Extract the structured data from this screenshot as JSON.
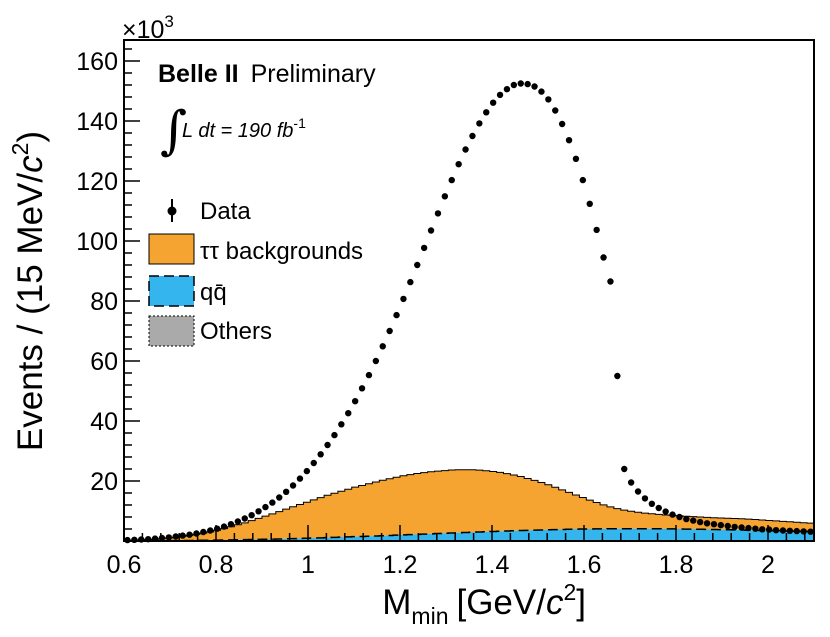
{
  "chart_data": {
    "type": "histogram",
    "experiment": "Belle II",
    "status": "Preliminary",
    "luminosity": {
      "integral": "∫",
      "text": "L dt = 190 fb",
      "exp": "-1"
    },
    "axis_multiplier": {
      "base": "×10",
      "exp": "3"
    },
    "xlabel": {
      "main": "M",
      "sub": "min",
      "unit": "[GeV/",
      "c": "c",
      "exp": "2",
      "close": "]"
    },
    "ylabel": {
      "main": "Events / (15 MeV/",
      "c": "c",
      "exp": "2",
      "close": ")"
    },
    "xlim": [
      0.6,
      2.1
    ],
    "ylim": [
      0,
      167
    ],
    "xticks": [
      0.6,
      0.8,
      1.0,
      1.2,
      1.4,
      1.6,
      1.8,
      2.0
    ],
    "xtick_labels": [
      "0.6",
      "0.8",
      "1",
      "1.2",
      "1.4",
      "1.6",
      "1.8",
      "2"
    ],
    "yticks": [
      20,
      40,
      60,
      80,
      100,
      120,
      140,
      160
    ],
    "ytick_labels": [
      "20",
      "40",
      "60",
      "80",
      "100",
      "120",
      "140",
      "160"
    ],
    "bin_width": 0.015,
    "legend": {
      "data": "Data",
      "tautau": "ττ backgrounds",
      "qqbar": "qq̄",
      "others": "Others"
    },
    "colors": {
      "tautau": "#f5a431",
      "qqbar": "#35b5ee",
      "others": "#aaaaaa"
    },
    "series": [
      {
        "name": "Data",
        "x": [
          0.6075,
          0.6225,
          0.6375,
          0.6525,
          0.6675,
          0.6825,
          0.6975,
          0.7125,
          0.7275,
          0.7425,
          0.7575,
          0.7725,
          0.7875,
          0.8025,
          0.8175,
          0.8325,
          0.8475,
          0.8625,
          0.8775,
          0.8925,
          0.9075,
          0.9225,
          0.9375,
          0.9525,
          0.9675,
          0.9825,
          0.9975,
          1.0125,
          1.0275,
          1.0425,
          1.0575,
          1.0725,
          1.0875,
          1.1025,
          1.1175,
          1.1325,
          1.1475,
          1.1625,
          1.1775,
          1.1925,
          1.2075,
          1.2225,
          1.2375,
          1.2525,
          1.2675,
          1.2825,
          1.2975,
          1.3125,
          1.3275,
          1.3425,
          1.3575,
          1.3725,
          1.3875,
          1.4025,
          1.4175,
          1.4325,
          1.4475,
          1.4625,
          1.4775,
          1.4925,
          1.5075,
          1.5225,
          1.5375,
          1.5525,
          1.5675,
          1.5825,
          1.5975,
          1.6125,
          1.6275,
          1.6425,
          1.6575,
          1.6725,
          1.6875,
          1.7025,
          1.7175,
          1.7325,
          1.7475,
          1.7625,
          1.7775,
          1.7925,
          1.8075,
          1.8225,
          1.8375,
          1.8525,
          1.8675,
          1.8825,
          1.8975,
          1.9125,
          1.9275,
          1.9425,
          1.9575,
          1.9725,
          1.9875,
          2.0025,
          2.0175,
          2.0325,
          2.0475,
          2.0625,
          2.0775,
          2.0925
        ],
        "values": [
          0.3,
          0.4,
          0.5,
          0.6,
          0.8,
          1.0,
          1.2,
          1.5,
          1.8,
          2.1,
          2.5,
          3.0,
          3.5,
          4.1,
          4.8,
          5.6,
          6.5,
          7.5,
          8.6,
          9.9,
          11.3,
          12.8,
          14.5,
          16.4,
          18.5,
          20.8,
          23.3,
          26.0,
          28.9,
          32.0,
          35.3,
          38.9,
          42.6,
          46.6,
          50.9,
          55.3,
          60.0,
          64.9,
          70.0,
          75.3,
          80.7,
          86.3,
          92.0,
          97.7,
          103.5,
          109.2,
          114.9,
          120.3,
          125.6,
          130.5,
          135.0,
          139.2,
          142.9,
          146.1,
          148.7,
          150.6,
          152.0,
          152.5,
          152.3,
          151.5,
          149.8,
          147.2,
          143.5,
          139.0,
          133.6,
          127.4,
          120.3,
          112.4,
          103.7,
          94.5,
          86.5,
          55.0,
          24.0,
          19.5,
          16.5,
          14.2,
          12.4,
          11.0,
          9.8,
          8.8,
          8.0,
          7.3,
          6.8,
          6.3,
          5.9,
          5.6,
          5.3,
          5.0,
          4.7,
          4.5,
          4.3,
          4.1,
          3.9,
          3.8,
          3.6,
          3.5,
          3.4,
          3.3,
          3.2,
          3.1
        ]
      },
      {
        "name": "ττ backgrounds",
        "x": [
          0.6075,
          0.6225,
          0.6375,
          0.6525,
          0.6675,
          0.6825,
          0.6975,
          0.7125,
          0.7275,
          0.7425,
          0.7575,
          0.7725,
          0.7875,
          0.8025,
          0.8175,
          0.8325,
          0.8475,
          0.8625,
          0.8775,
          0.8925,
          0.9075,
          0.9225,
          0.9375,
          0.9525,
          0.9675,
          0.9825,
          0.9975,
          1.0125,
          1.0275,
          1.0425,
          1.0575,
          1.0725,
          1.0875,
          1.1025,
          1.1175,
          1.1325,
          1.1475,
          1.1625,
          1.1775,
          1.1925,
          1.2075,
          1.2225,
          1.2375,
          1.2525,
          1.2675,
          1.2825,
          1.2975,
          1.3125,
          1.3275,
          1.3425,
          1.3575,
          1.3725,
          1.3875,
          1.4025,
          1.4175,
          1.4325,
          1.4475,
          1.4625,
          1.4775,
          1.4925,
          1.5075,
          1.5225,
          1.5375,
          1.5525,
          1.5675,
          1.5825,
          1.5975,
          1.6125,
          1.6275,
          1.6425,
          1.6575,
          1.6725,
          1.6875,
          1.7025,
          1.7175,
          1.7325,
          1.7475,
          1.7625,
          1.7775,
          1.7925,
          1.8075,
          1.8225,
          1.8375,
          1.8525,
          1.8675,
          1.8825,
          1.8975,
          1.9125,
          1.9275,
          1.9425,
          1.9575,
          1.9725,
          1.9875,
          2.0025,
          2.0175,
          2.0325,
          2.0475,
          2.0625,
          2.0775,
          2.0925
        ],
        "values": [
          0.1,
          0.2,
          0.3,
          0.4,
          0.5,
          0.7,
          0.9,
          1.1,
          1.4,
          1.7,
          2.0,
          2.4,
          2.8,
          3.3,
          3.8,
          4.4,
          5.0,
          5.6,
          6.3,
          7.0,
          7.7,
          8.4,
          9.1,
          9.9,
          10.6,
          11.3,
          12.0,
          12.7,
          13.4,
          14.1,
          14.7,
          15.3,
          15.9,
          16.5,
          17.0,
          17.5,
          18.0,
          18.5,
          18.9,
          19.3,
          19.7,
          20.0,
          20.3,
          20.5,
          20.7,
          20.8,
          20.9,
          21.0,
          21.0,
          20.9,
          20.8,
          20.6,
          20.3,
          20.0,
          19.6,
          19.1,
          18.6,
          18.0,
          17.3,
          16.6,
          15.8,
          15.0,
          14.1,
          13.2,
          12.3,
          11.4,
          10.5,
          9.6,
          8.8,
          8.0,
          7.3,
          6.7,
          6.2,
          5.8,
          5.5,
          5.2,
          5.0,
          4.8,
          4.6,
          4.5,
          4.4,
          4.3,
          4.2,
          4.1,
          4.0,
          3.95,
          3.9,
          3.85,
          3.8,
          3.75,
          3.7,
          3.6,
          3.5,
          3.4,
          3.3,
          3.2,
          3.1,
          3.0,
          2.9,
          2.8
        ]
      },
      {
        "name": "qq̄",
        "x": [
          0.6075,
          0.6225,
          0.6375,
          0.6525,
          0.6675,
          0.6825,
          0.6975,
          0.7125,
          0.7275,
          0.7425,
          0.7575,
          0.7725,
          0.7875,
          0.8025,
          0.8175,
          0.8325,
          0.8475,
          0.8625,
          0.8775,
          0.8925,
          0.9075,
          0.9225,
          0.9375,
          0.9525,
          0.9675,
          0.9825,
          0.9975,
          1.0125,
          1.0275,
          1.0425,
          1.0575,
          1.0725,
          1.0875,
          1.1025,
          1.1175,
          1.1325,
          1.1475,
          1.1625,
          1.1775,
          1.1925,
          1.2075,
          1.2225,
          1.2375,
          1.2525,
          1.2675,
          1.2825,
          1.2975,
          1.3125,
          1.3275,
          1.3425,
          1.3575,
          1.3725,
          1.3875,
          1.4025,
          1.4175,
          1.4325,
          1.4475,
          1.4625,
          1.4775,
          1.4925,
          1.5075,
          1.5225,
          1.5375,
          1.5525,
          1.5675,
          1.5825,
          1.5975,
          1.6125,
          1.6275,
          1.6425,
          1.6575,
          1.6725,
          1.6875,
          1.7025,
          1.7175,
          1.7325,
          1.7475,
          1.7625,
          1.7775,
          1.7925,
          1.8075,
          1.8225,
          1.8375,
          1.8525,
          1.8675,
          1.8825,
          1.8975,
          1.9125,
          1.9275,
          1.9425,
          1.9575,
          1.9725,
          1.9875,
          2.0025,
          2.0175,
          2.0325,
          2.0475,
          2.0625,
          2.0775,
          2.0925
        ],
        "values": [
          0.05,
          0.06,
          0.07,
          0.08,
          0.09,
          0.1,
          0.12,
          0.14,
          0.16,
          0.18,
          0.2,
          0.23,
          0.26,
          0.29,
          0.32,
          0.36,
          0.4,
          0.44,
          0.48,
          0.53,
          0.58,
          0.63,
          0.68,
          0.74,
          0.8,
          0.86,
          0.92,
          0.99,
          1.06,
          1.13,
          1.2,
          1.28,
          1.36,
          1.44,
          1.52,
          1.6,
          1.68,
          1.76,
          1.85,
          1.94,
          2.03,
          2.12,
          2.21,
          2.3,
          2.39,
          2.48,
          2.57,
          2.66,
          2.75,
          2.84,
          2.93,
          3.02,
          3.1,
          3.18,
          3.26,
          3.34,
          3.41,
          3.48,
          3.55,
          3.62,
          3.68,
          3.74,
          3.8,
          3.85,
          3.9,
          3.94,
          3.98,
          4.01,
          4.04,
          4.06,
          4.08,
          4.09,
          4.1,
          4.1,
          4.1,
          4.09,
          4.08,
          4.07,
          4.05,
          4.03,
          4.0,
          3.97,
          3.94,
          3.9,
          3.86,
          3.82,
          3.78,
          3.74,
          3.7,
          3.65,
          3.6,
          3.55,
          3.5,
          3.45,
          3.4,
          3.35,
          3.3,
          3.25,
          3.2,
          3.15
        ]
      },
      {
        "name": "Others",
        "x": [],
        "values": []
      }
    ]
  }
}
